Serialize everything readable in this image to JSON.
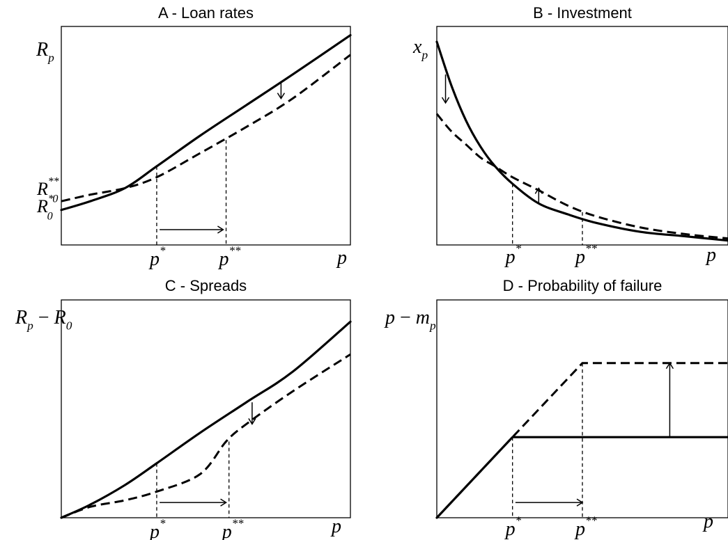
{
  "chart_data": [
    {
      "type": "line",
      "title": "A - Loan rates",
      "ylabel": {
        "base": "R",
        "sub": "p"
      },
      "xlabel": {
        "base": "p"
      },
      "x_ticks": [
        {
          "base": "p",
          "sup": "*"
        },
        {
          "base": "p",
          "sup": "**"
        }
      ],
      "y_ticks": [
        {
          "base": "R",
          "sub": "0",
          "sup": "**"
        },
        {
          "base": "R",
          "sub": "0",
          "sup": "*"
        }
      ],
      "xlim": [
        0,
        1
      ],
      "ylim": [
        0,
        1
      ],
      "series": [
        {
          "style": "solid",
          "x": [
            0,
            0.1,
            0.22,
            0.33,
            0.48,
            0.64,
            0.8,
            1.0
          ],
          "y": [
            0.16,
            0.2,
            0.26,
            0.36,
            0.5,
            0.64,
            0.78,
            0.96
          ]
        },
        {
          "style": "dashed",
          "x": [
            0,
            0.1,
            0.22,
            0.33,
            0.48,
            0.64,
            0.8,
            1.0
          ],
          "y": [
            0.2,
            0.23,
            0.26,
            0.31,
            0.42,
            0.54,
            0.67,
            0.87
          ]
        }
      ],
      "guides": [
        {
          "x": 0.33,
          "y_top": 0.36
        },
        {
          "x": 0.57,
          "y_top": 0.48
        }
      ],
      "arrows": [
        {
          "dir": "right",
          "x1": 0.34,
          "x2": 0.56,
          "y": 0.07
        },
        {
          "dir": "down",
          "x": 0.76,
          "y1": 0.75,
          "y2": 0.67
        }
      ]
    },
    {
      "type": "line",
      "title": "B - Investment",
      "ylabel": {
        "base": "x",
        "sub": "p"
      },
      "xlabel": {
        "base": "p"
      },
      "x_ticks": [
        {
          "base": "p",
          "sup": "*"
        },
        {
          "base": "p",
          "sup": "**"
        }
      ],
      "y_ticks": [],
      "xlim": [
        0,
        1
      ],
      "ylim": [
        0,
        1
      ],
      "series": [
        {
          "style": "solid",
          "x": [
            0,
            0.05,
            0.1,
            0.15,
            0.2,
            0.26,
            0.35,
            0.45,
            0.55,
            0.7,
            0.85,
            1.0
          ],
          "y": [
            0.93,
            0.73,
            0.57,
            0.45,
            0.36,
            0.28,
            0.19,
            0.14,
            0.1,
            0.06,
            0.04,
            0.02
          ]
        },
        {
          "style": "dashed",
          "x": [
            0,
            0.05,
            0.1,
            0.15,
            0.2,
            0.26,
            0.35,
            0.45,
            0.55,
            0.7,
            0.85,
            1.0
          ],
          "y": [
            0.6,
            0.52,
            0.46,
            0.4,
            0.36,
            0.31,
            0.25,
            0.18,
            0.13,
            0.08,
            0.05,
            0.03
          ]
        }
      ],
      "guides": [
        {
          "x": 0.26,
          "y_top": 0.28
        },
        {
          "x": 0.5,
          "y_top": 0.15
        }
      ],
      "arrows": [
        {
          "dir": "down",
          "x": 0.03,
          "y1": 0.78,
          "y2": 0.65
        },
        {
          "dir": "up",
          "x": 0.35,
          "y1": 0.19,
          "y2": 0.26
        }
      ]
    },
    {
      "type": "line",
      "title": "C - Spreads",
      "ylabel": {
        "base": "R",
        "sub": "p",
        "mid": "−",
        "base2": "R",
        "sub2": "0"
      },
      "xlabel": {
        "base": "p"
      },
      "x_ticks": [
        {
          "base": "p",
          "sup": "*"
        },
        {
          "base": "p",
          "sup": "**"
        }
      ],
      "y_ticks": [],
      "xlim": [
        0,
        1
      ],
      "ylim": [
        0,
        1
      ],
      "series": [
        {
          "style": "solid",
          "x": [
            0,
            0.1,
            0.22,
            0.33,
            0.48,
            0.64,
            0.8,
            1.0
          ],
          "y": [
            0,
            0.06,
            0.15,
            0.25,
            0.39,
            0.53,
            0.67,
            0.9
          ]
        },
        {
          "style": "dashed",
          "x": [
            0,
            0.1,
            0.22,
            0.33,
            0.48,
            0.57,
            0.64,
            0.8,
            1.0
          ],
          "y": [
            0,
            0.05,
            0.08,
            0.12,
            0.2,
            0.35,
            0.43,
            0.58,
            0.75
          ]
        }
      ],
      "guides": [
        {
          "x": 0.33,
          "y_top": 0.25
        },
        {
          "x": 0.58,
          "y_top": 0.35
        }
      ],
      "arrows": [
        {
          "dir": "right",
          "x1": 0.34,
          "x2": 0.57,
          "y": 0.07
        },
        {
          "dir": "down",
          "x": 0.66,
          "y1": 0.53,
          "y2": 0.43
        }
      ]
    },
    {
      "type": "line",
      "title": "D - Probability of failure",
      "ylabel": {
        "base": "p",
        "mid": "−",
        "base2": "m",
        "sub2": "p"
      },
      "xlabel": {
        "base": "p"
      },
      "x_ticks": [
        {
          "base": "p",
          "sup": "*"
        },
        {
          "base": "p",
          "sup": "**"
        }
      ],
      "y_ticks": [],
      "xlim": [
        0,
        1
      ],
      "ylim": [
        0,
        1
      ],
      "series": [
        {
          "style": "solid",
          "x": [
            0,
            0.26,
            1.0
          ],
          "y": [
            0,
            0.37,
            0.37
          ]
        },
        {
          "style": "dashed",
          "x": [
            0,
            0.26,
            0.5,
            1.0
          ],
          "y": [
            0,
            0.37,
            0.71,
            0.71
          ]
        }
      ],
      "guides": [
        {
          "x": 0.26,
          "y_top": 0.37
        },
        {
          "x": 0.5,
          "y_top": 0.71
        }
      ],
      "arrows": [
        {
          "dir": "right",
          "x1": 0.27,
          "x2": 0.5,
          "y": 0.07
        },
        {
          "dir": "up",
          "x": 0.8,
          "y1": 0.37,
          "y2": 0.71
        }
      ]
    }
  ]
}
